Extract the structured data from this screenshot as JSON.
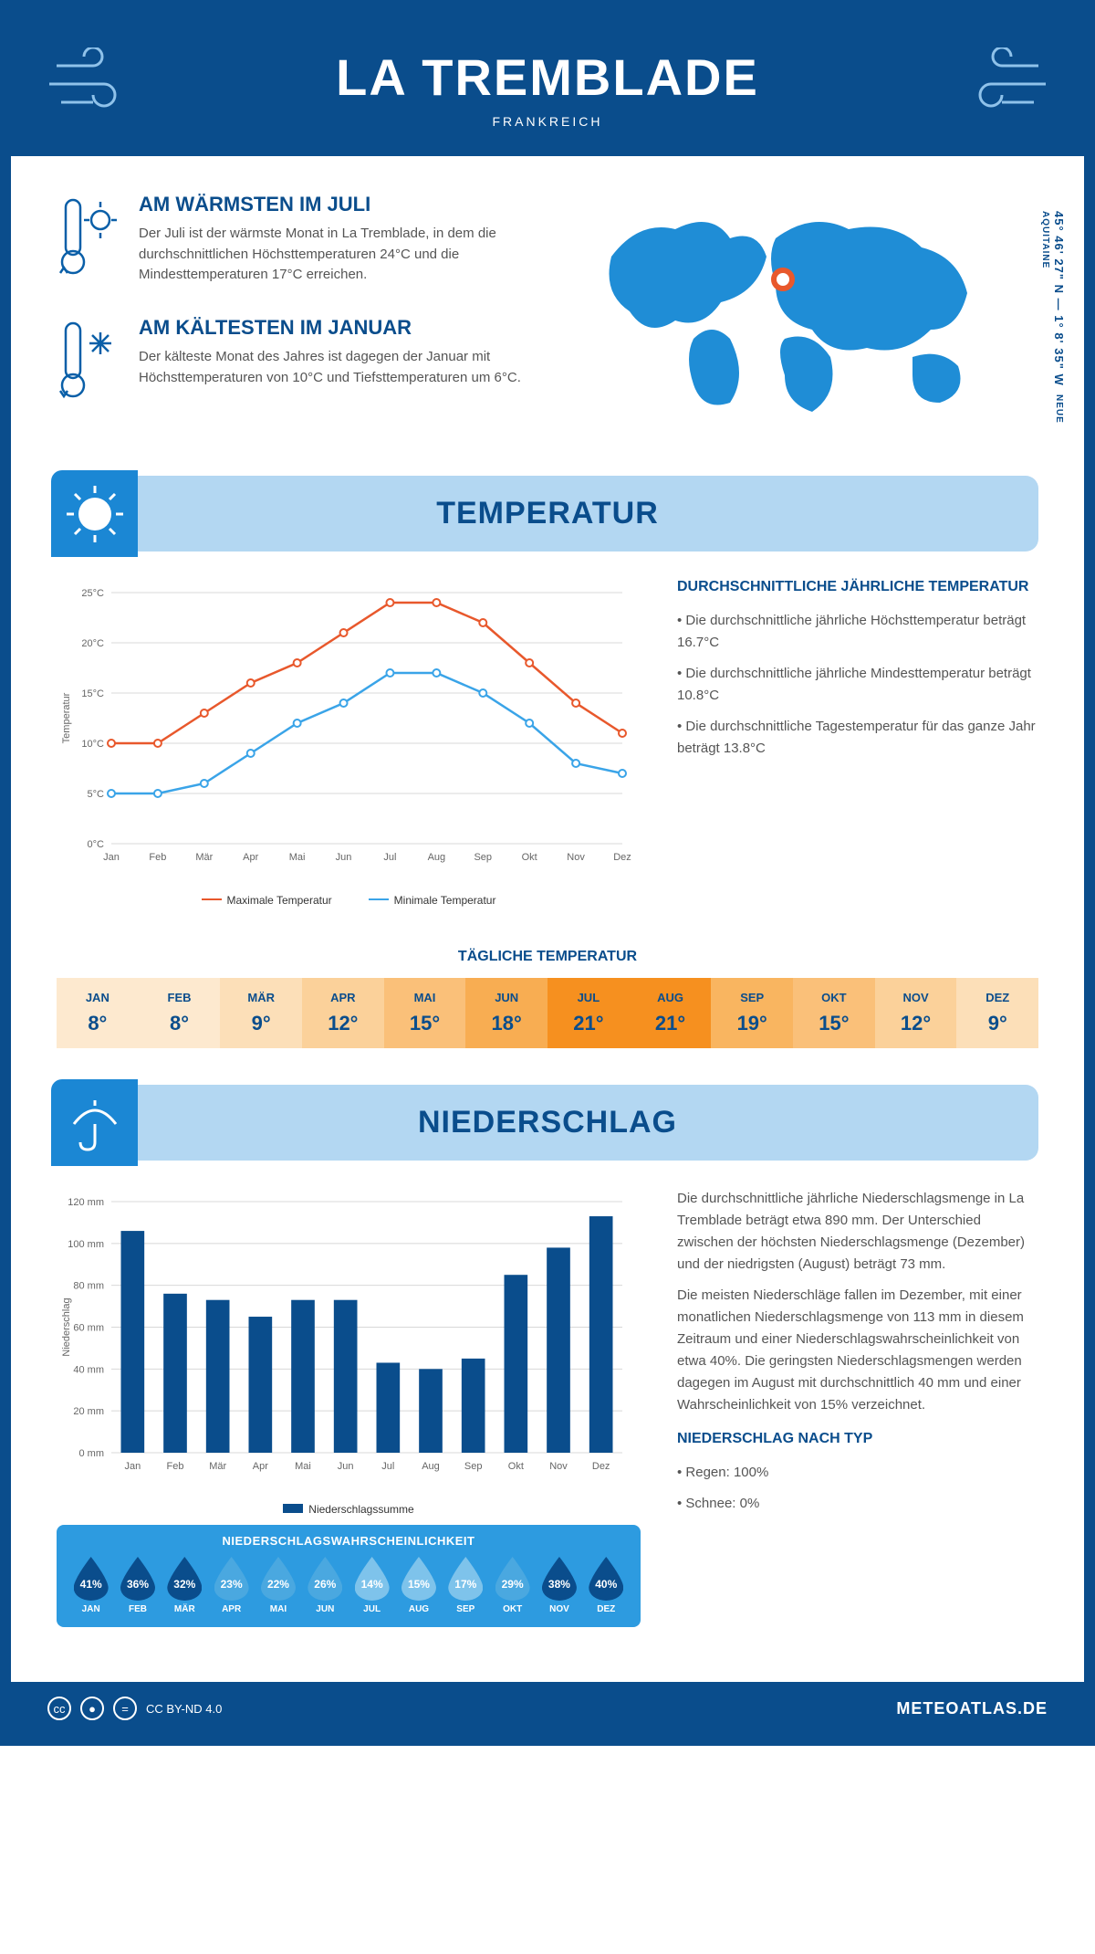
{
  "header": {
    "title": "LA TREMBLADE",
    "country": "FRANKREICH"
  },
  "coords": {
    "line1": "45° 46' 27\" N — 1° 8' 35\" W",
    "line2": "NEUE AQUITAINE"
  },
  "facts": {
    "warm_title": "AM WÄRMSTEN IM JULI",
    "warm_text": "Der Juli ist der wärmste Monat in La Tremblade, in dem die durchschnittlichen Höchsttemperaturen 24°C und die Mindesttemperaturen 17°C erreichen.",
    "cold_title": "AM KÄLTESTEN IM JANUAR",
    "cold_text": "Der kälteste Monat des Jahres ist dagegen der Januar mit Höchsttemperaturen von 10°C und Tiefsttemperaturen um 6°C."
  },
  "temperature": {
    "section_title": "TEMPERATUR",
    "desc_title": "DURCHSCHNITTLICHE JÄHRLICHE TEMPERATUR",
    "bullet1": "• Die durchschnittliche jährliche Höchsttemperatur beträgt 16.7°C",
    "bullet2": "• Die durchschnittliche jährliche Mindesttemperatur beträgt 10.8°C",
    "bullet3": "• Die durchschnittliche Tagestemperatur für das ganze Jahr beträgt 13.8°C",
    "months": [
      "Jan",
      "Feb",
      "Mär",
      "Apr",
      "Mai",
      "Jun",
      "Jul",
      "Aug",
      "Sep",
      "Okt",
      "Nov",
      "Dez"
    ],
    "max_values": [
      10,
      10,
      13,
      16,
      18,
      21,
      24,
      24,
      22,
      18,
      14,
      11
    ],
    "min_values": [
      5,
      5,
      6,
      9,
      12,
      14,
      17,
      17,
      15,
      12,
      8,
      7
    ],
    "max_color": "#e8582c",
    "min_color": "#3aa4e8",
    "y_label": "Temperatur",
    "y_ticks": [
      "0°C",
      "5°C",
      "10°C",
      "15°C",
      "20°C",
      "25°C"
    ],
    "ylim": [
      0,
      25
    ],
    "legend_max": "Maximale Temperatur",
    "legend_min": "Minimale Temperatur",
    "daily_heading": "TÄGLICHE TEMPERATUR",
    "daily_months": [
      "JAN",
      "FEB",
      "MÄR",
      "APR",
      "MAI",
      "JUN",
      "JUL",
      "AUG",
      "SEP",
      "OKT",
      "NOV",
      "DEZ"
    ],
    "daily_values": [
      "8°",
      "8°",
      "9°",
      "12°",
      "15°",
      "18°",
      "21°",
      "21°",
      "19°",
      "15°",
      "12°",
      "9°"
    ],
    "daily_colors": [
      "#fde9cf",
      "#fde9cf",
      "#fcdfb8",
      "#fbd19a",
      "#fac079",
      "#f8ad52",
      "#f6901f",
      "#f6901f",
      "#f9b560",
      "#fac079",
      "#fbd19a",
      "#fcdfb8"
    ]
  },
  "precipitation": {
    "section_title": "NIEDERSCHLAG",
    "y_label": "Niederschlag",
    "y_ticks": [
      0,
      20,
      40,
      60,
      80,
      100,
      120
    ],
    "ylim": [
      0,
      120
    ],
    "months": [
      "Jan",
      "Feb",
      "Mär",
      "Apr",
      "Mai",
      "Jun",
      "Jul",
      "Aug",
      "Sep",
      "Okt",
      "Nov",
      "Dez"
    ],
    "values": [
      106,
      76,
      73,
      65,
      73,
      73,
      43,
      40,
      45,
      85,
      98,
      113
    ],
    "bar_color": "#0a4d8c",
    "legend": "Niederschlagssumme",
    "prob_title": "NIEDERSCHLAGSWAHRSCHEINLICHKEIT",
    "prob_months": [
      "JAN",
      "FEB",
      "MÄR",
      "APR",
      "MAI",
      "JUN",
      "JUL",
      "AUG",
      "SEP",
      "OKT",
      "NOV",
      "DEZ"
    ],
    "prob_values": [
      "41%",
      "36%",
      "32%",
      "23%",
      "22%",
      "26%",
      "14%",
      "15%",
      "17%",
      "29%",
      "38%",
      "40%"
    ],
    "prob_drop_colors": [
      "#0a4d8c",
      "#0a4d8c",
      "#0a4d8c",
      "#4aa8e0",
      "#4aa8e0",
      "#4aa8e0",
      "#7ec3eb",
      "#7ec3eb",
      "#7ec3eb",
      "#4aa8e0",
      "#0a4d8c",
      "#0a4d8c"
    ],
    "para1": "Die durchschnittliche jährliche Niederschlagsmenge in La Tremblade beträgt etwa 890 mm. Der Unterschied zwischen der höchsten Niederschlagsmenge (Dezember) und der niedrigsten (August) beträgt 73 mm.",
    "para2": "Die meisten Niederschläge fallen im Dezember, mit einer monatlichen Niederschlagsmenge von 113 mm in diesem Zeitraum und einer Niederschlagswahrscheinlichkeit von etwa 40%. Die geringsten Niederschlagsmengen werden dagegen im August mit durchschnittlich 40 mm und einer Wahrscheinlichkeit von 15% verzeichnet.",
    "type_title": "NIEDERSCHLAG NACH TYP",
    "type1": "• Regen: 100%",
    "type2": "• Schnee: 0%"
  },
  "footer": {
    "license": "CC BY-ND 4.0",
    "brand": "METEOATLAS.DE"
  }
}
